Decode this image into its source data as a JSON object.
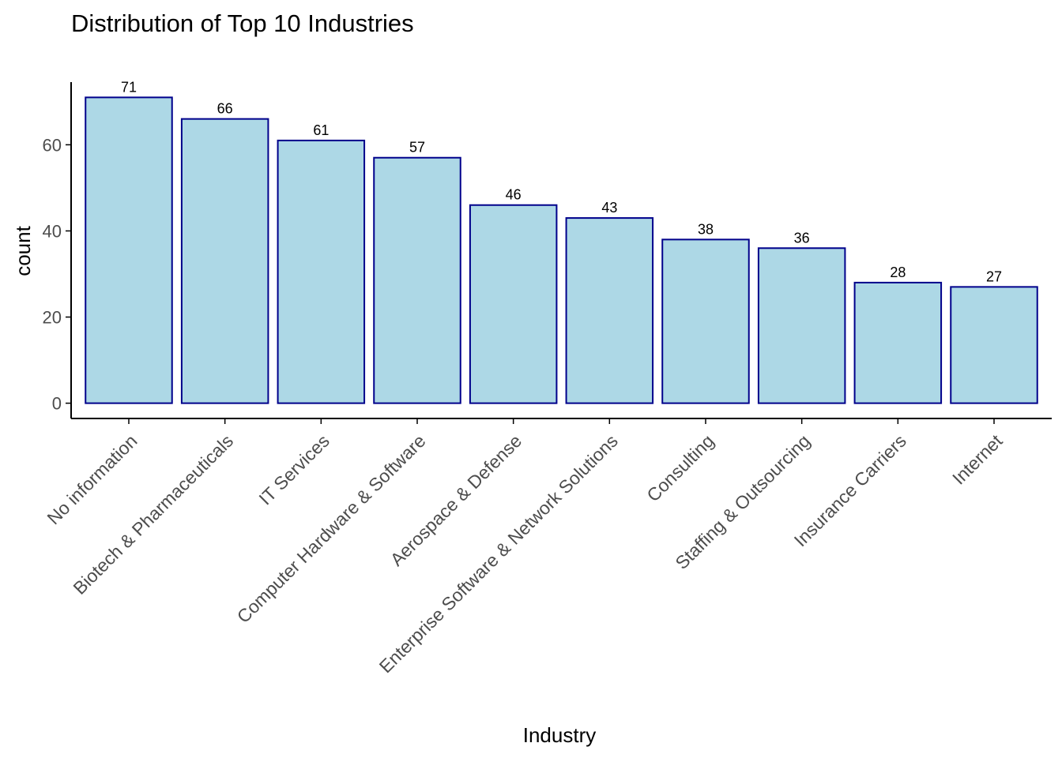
{
  "chart_data": {
    "type": "bar",
    "title": "Distribution of Top 10 Industries",
    "xlabel": "Industry",
    "ylabel": "count",
    "categories": [
      "No information",
      "Biotech & Pharmaceuticals",
      "IT Services",
      "Computer Hardware & Software",
      "Aerospace & Defense",
      "Enterprise Software & Network Solutions",
      "Consulting",
      "Staffing & Outsourcing",
      "Insurance Carriers",
      "Internet"
    ],
    "values": [
      71,
      66,
      61,
      57,
      46,
      43,
      38,
      36,
      28,
      27
    ],
    "data_labels": [
      "71",
      "66",
      "61",
      "57",
      "46",
      "43",
      "38",
      "36",
      "28",
      "27"
    ],
    "y_ticks": [
      0,
      20,
      40,
      60
    ],
    "y_tick_labels": [
      "0",
      "20",
      "40",
      "60"
    ],
    "ylim": [
      -3.55,
      74.55
    ],
    "grid": false,
    "legend": "none",
    "colors": {
      "bar_fill": "#add8e6",
      "bar_stroke": "#00008b",
      "axis": "#000000"
    }
  }
}
